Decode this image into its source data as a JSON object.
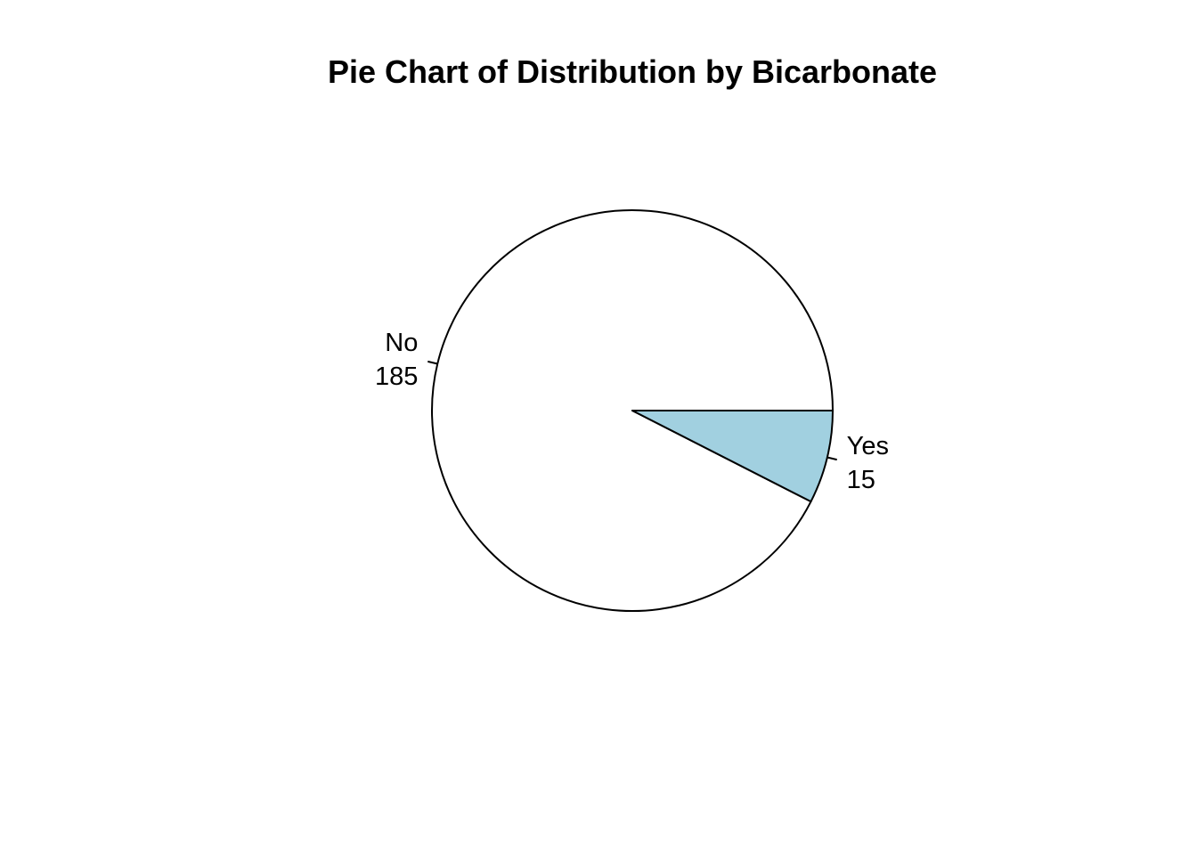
{
  "chart_data": {
    "type": "pie",
    "title": "Pie Chart of Distribution by Bicarbonate",
    "start_angle_deg": 0,
    "direction": "counterclockwise",
    "slices": [
      {
        "label": "No",
        "value": 185,
        "color": "#ffffff"
      },
      {
        "label": "Yes",
        "value": 15,
        "color": "#a1d0e0"
      }
    ],
    "stroke_color": "#000000"
  }
}
